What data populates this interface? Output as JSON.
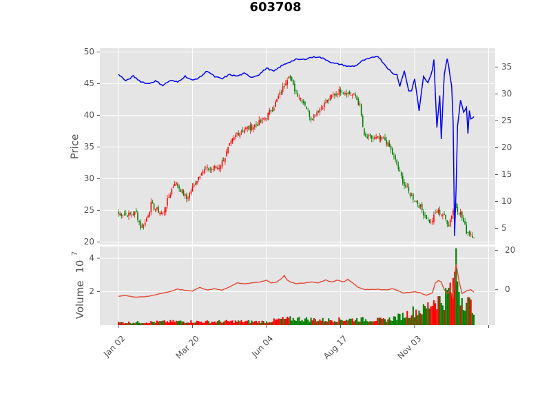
{
  "chart_data": {
    "type": "candlestick",
    "title": "603708",
    "price_panel": {
      "ylabel": "Price",
      "ylim": [
        19.6,
        50.6
      ],
      "yticks": [
        20,
        25,
        30,
        35,
        40,
        45,
        50
      ],
      "secondary_ylim": [
        2.0,
        38.5
      ],
      "secondary_yticks": [
        5,
        10,
        15,
        20,
        25,
        30,
        35
      ],
      "secondary_line_color": "#0000ff",
      "grid": true
    },
    "volume_panel": {
      "ylabel": "Volume",
      "exponent_label": "10",
      "exponent": "7",
      "ylim": [
        0,
        4.7
      ],
      "yticks": [
        2,
        4
      ],
      "secondary_ylim": [
        -18,
        22
      ],
      "secondary_yticks": [
        0,
        20
      ],
      "secondary_line_color": "#e24a33",
      "up_color": "#ff0000",
      "down_color": "#008000",
      "grid": true
    },
    "xticks": [
      {
        "label": "Jan 02",
        "index": 0
      },
      {
        "label": "Mar 20",
        "index": 50
      },
      {
        "label": "Jun 04",
        "index": 100
      },
      {
        "label": "Aug 17",
        "index": 150
      },
      {
        "label": "Nov 03",
        "index": 200
      },
      {
        "label": "",
        "index": 250
      }
    ],
    "n_bars": 241,
    "close_anchors": [
      [
        0,
        24.5
      ],
      [
        8,
        24.3
      ],
      [
        12,
        24.6
      ],
      [
        15,
        22.4
      ],
      [
        18,
        23.0
      ],
      [
        22,
        25.9
      ],
      [
        25,
        25.2
      ],
      [
        30,
        24.4
      ],
      [
        33,
        26.5
      ],
      [
        38,
        29.5
      ],
      [
        42,
        28.3
      ],
      [
        46,
        26.8
      ],
      [
        52,
        29.4
      ],
      [
        56,
        31.2
      ],
      [
        62,
        31.5
      ],
      [
        68,
        31.9
      ],
      [
        72,
        33.5
      ],
      [
        75,
        35.2
      ],
      [
        80,
        37.1
      ],
      [
        85,
        37.8
      ],
      [
        90,
        38.1
      ],
      [
        95,
        38.8
      ],
      [
        100,
        39.8
      ],
      [
        105,
        41.5
      ],
      [
        110,
        43.8
      ],
      [
        115,
        46.5
      ],
      [
        118,
        44.5
      ],
      [
        122,
        43.0
      ],
      [
        126,
        41.8
      ],
      [
        130,
        39.5
      ],
      [
        135,
        40.8
      ],
      [
        140,
        42.0
      ],
      [
        145,
        43.2
      ],
      [
        150,
        44.0
      ],
      [
        155,
        43.5
      ],
      [
        160,
        43.0
      ],
      [
        163,
        41.5
      ],
      [
        166,
        36.5
      ],
      [
        170,
        36.4
      ],
      [
        175,
        36.3
      ],
      [
        180,
        36.1
      ],
      [
        183,
        35.0
      ],
      [
        188,
        32.2
      ],
      [
        193,
        29.0
      ],
      [
        197,
        27.5
      ],
      [
        202,
        26.2
      ],
      [
        207,
        24.2
      ],
      [
        211,
        23.0
      ],
      [
        215,
        24.9
      ],
      [
        219,
        24.3
      ],
      [
        223,
        22.8
      ],
      [
        227,
        25.8
      ],
      [
        231,
        24.5
      ],
      [
        235,
        21.7
      ],
      [
        240,
        21.0
      ]
    ],
    "secondary_anchors": [
      [
        0,
        33.7
      ],
      [
        5,
        32.4
      ],
      [
        10,
        33.3
      ],
      [
        15,
        32.3
      ],
      [
        20,
        31.9
      ],
      [
        25,
        32.4
      ],
      [
        30,
        31.6
      ],
      [
        35,
        32.5
      ],
      [
        40,
        32.2
      ],
      [
        45,
        33.3
      ],
      [
        50,
        32.5
      ],
      [
        55,
        33.1
      ],
      [
        60,
        34.3
      ],
      [
        65,
        33.2
      ],
      [
        70,
        32.8
      ],
      [
        75,
        33.6
      ],
      [
        80,
        33.3
      ],
      [
        85,
        33.8
      ],
      [
        90,
        33.1
      ],
      [
        95,
        33.6
      ],
      [
        100,
        34.8
      ],
      [
        105,
        34.2
      ],
      [
        110,
        35.2
      ],
      [
        115,
        35.9
      ],
      [
        120,
        36.4
      ],
      [
        125,
        36.4
      ],
      [
        130,
        36.8
      ],
      [
        135,
        36.9
      ],
      [
        140,
        36.4
      ],
      [
        145,
        35.7
      ],
      [
        150,
        35.5
      ],
      [
        155,
        35.1
      ],
      [
        160,
        35.2
      ],
      [
        165,
        36.2
      ],
      [
        170,
        36.6
      ],
      [
        175,
        37.1
      ],
      [
        180,
        35.4
      ],
      [
        185,
        33.8
      ],
      [
        188,
        33.6
      ],
      [
        190,
        31.5
      ],
      [
        193,
        34.3
      ],
      [
        196,
        30.6
      ],
      [
        198,
        30.6
      ],
      [
        200,
        32.9
      ],
      [
        203,
        26.9
      ],
      [
        206,
        33.3
      ],
      [
        209,
        32.0
      ],
      [
        212,
        34.4
      ],
      [
        213,
        36.3
      ],
      [
        215,
        23.8
      ],
      [
        217,
        29.8
      ],
      [
        218,
        21.7
      ],
      [
        220,
        33.6
      ],
      [
        222,
        36.5
      ],
      [
        223,
        35.2
      ],
      [
        225,
        31.4
      ],
      [
        226,
        24.8
      ],
      [
        227,
        3.7
      ],
      [
        228,
        12.5
      ],
      [
        229,
        24.0
      ],
      [
        231,
        28.9
      ],
      [
        233,
        26.7
      ],
      [
        235,
        27.5
      ],
      [
        236,
        22.5
      ],
      [
        237,
        27.0
      ],
      [
        238,
        25.4
      ],
      [
        240,
        25.7
      ]
    ],
    "volume_ma_anchors": [
      [
        0,
        -3.4
      ],
      [
        5,
        -2.9
      ],
      [
        10,
        -3.7
      ],
      [
        15,
        -3.6
      ],
      [
        20,
        -3.4
      ],
      [
        25,
        -2.5
      ],
      [
        30,
        -1.7
      ],
      [
        35,
        -0.9
      ],
      [
        40,
        0.3
      ],
      [
        45,
        -0.3
      ],
      [
        50,
        -0.6
      ],
      [
        55,
        1.2
      ],
      [
        60,
        -0.2
      ],
      [
        65,
        0.5
      ],
      [
        70,
        -0.2
      ],
      [
        75,
        1.5
      ],
      [
        80,
        3.4
      ],
      [
        85,
        3.0
      ],
      [
        90,
        3.5
      ],
      [
        95,
        3.9
      ],
      [
        100,
        4.8
      ],
      [
        103,
        3.5
      ],
      [
        106,
        3.6
      ],
      [
        110,
        5.6
      ],
      [
        112,
        7.3
      ],
      [
        114,
        4.9
      ],
      [
        116,
        4.1
      ],
      [
        120,
        3.1
      ],
      [
        125,
        3.4
      ],
      [
        130,
        4.0
      ],
      [
        135,
        3.5
      ],
      [
        140,
        5.0
      ],
      [
        144,
        3.9
      ],
      [
        148,
        4.9
      ],
      [
        152,
        4.0
      ],
      [
        155,
        5.3
      ],
      [
        158,
        3.6
      ],
      [
        162,
        1.2
      ],
      [
        166,
        0.2
      ],
      [
        170,
        0.1
      ],
      [
        175,
        0.3
      ],
      [
        180,
        -0.1
      ],
      [
        185,
        0.5
      ],
      [
        188,
        -0.2
      ],
      [
        192,
        -1.7
      ],
      [
        196,
        -1.4
      ],
      [
        200,
        -1.0
      ],
      [
        204,
        -1.7
      ],
      [
        208,
        -2.9
      ],
      [
        212,
        -1.6
      ],
      [
        214,
        3.5
      ],
      [
        216,
        4.6
      ],
      [
        218,
        4.0
      ],
      [
        220,
        0.2
      ],
      [
        222,
        -1.9
      ],
      [
        224,
        -0.4
      ],
      [
        226,
        -4.6
      ],
      [
        227,
        6.2
      ],
      [
        228,
        13.0
      ],
      [
        229,
        9.0
      ],
      [
        230,
        4.5
      ],
      [
        232,
        -2.0
      ],
      [
        235,
        -0.5
      ],
      [
        238,
        0.0
      ],
      [
        240,
        -1.3
      ]
    ],
    "volume_anchors": [
      [
        0,
        0.15
      ],
      [
        20,
        0.18
      ],
      [
        40,
        0.22
      ],
      [
        60,
        0.2
      ],
      [
        80,
        0.22
      ],
      [
        100,
        0.2
      ],
      [
        110,
        0.35
      ],
      [
        120,
        0.38
      ],
      [
        140,
        0.3
      ],
      [
        160,
        0.35
      ],
      [
        180,
        0.3
      ],
      [
        190,
        0.5
      ],
      [
        200,
        0.85
      ],
      [
        206,
        0.9
      ],
      [
        210,
        1.2
      ],
      [
        214,
        1.6
      ],
      [
        218,
        1.4
      ],
      [
        222,
        1.8
      ],
      [
        224,
        2.2
      ],
      [
        226,
        2.0
      ],
      [
        227,
        3.6
      ],
      [
        228,
        4.3
      ],
      [
        229,
        2.8
      ],
      [
        231,
        1.8
      ],
      [
        234,
        1.5
      ],
      [
        237,
        1.25
      ],
      [
        240,
        1.1
      ]
    ]
  }
}
